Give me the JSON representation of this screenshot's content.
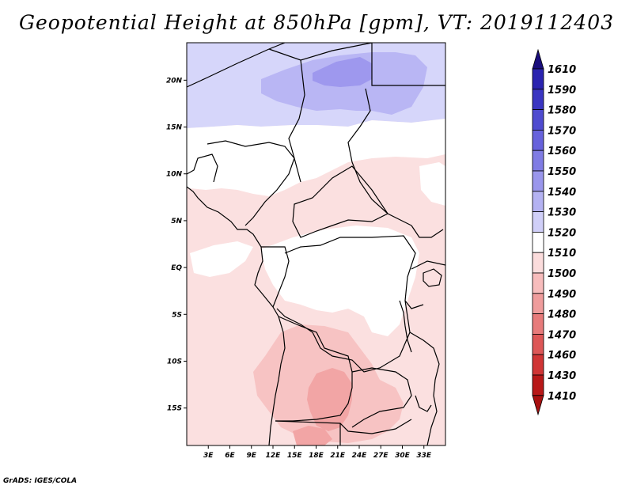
{
  "title": "Geopotential Height at 850hPa [gpm], VT: 2019112403",
  "credit": "GrADS: IGES/COLA",
  "map": {
    "lon_range": [
      0,
      36
    ],
    "lat_range": [
      -19,
      24
    ],
    "lat_labels": [
      "20N",
      "15N",
      "10N",
      "5N",
      "EQ",
      "5S",
      "10S",
      "15S"
    ],
    "lat_values": [
      20,
      15,
      10,
      5,
      0,
      -5,
      -10,
      -15
    ],
    "lon_labels": [
      "3E",
      "6E",
      "9E",
      "12E",
      "15E",
      "18E",
      "21E",
      "24E",
      "27E",
      "30E",
      "33E"
    ],
    "lon_values": [
      3,
      6,
      9,
      12,
      15,
      18,
      21,
      24,
      27,
      30,
      33
    ]
  },
  "colorbar": {
    "levels": [
      "1610",
      "1590",
      "1580",
      "1570",
      "1560",
      "1550",
      "1540",
      "1530",
      "1520",
      "1510",
      "1500",
      "1490",
      "1480",
      "1470",
      "1460",
      "1430",
      "1410"
    ],
    "colors": [
      "#20129a",
      "#2a23b0",
      "#3a35c2",
      "#4f4bd0",
      "#6762dc",
      "#807ce4",
      "#9a96ec",
      "#b4b2f2",
      "#d0cff8",
      "#ffffff",
      "#fbdcdc",
      "#f7bcbc",
      "#ef9c9c",
      "#e77b7b",
      "#dd5757",
      "#d03535",
      "#b81818"
    ],
    "top_color": "#1a0e7c",
    "bottom_color": "#a81010"
  },
  "field_colors": {
    "lev_1520": "#d6d6fa",
    "lev_1530": "#b9b6f4",
    "lev_1540": "#9e98ee",
    "lev_1510": "#ffffff",
    "lev_1500": "#fbe0e0",
    "lev_1490": "#f7c3c3",
    "lev_1480": "#f2a5a5"
  }
}
